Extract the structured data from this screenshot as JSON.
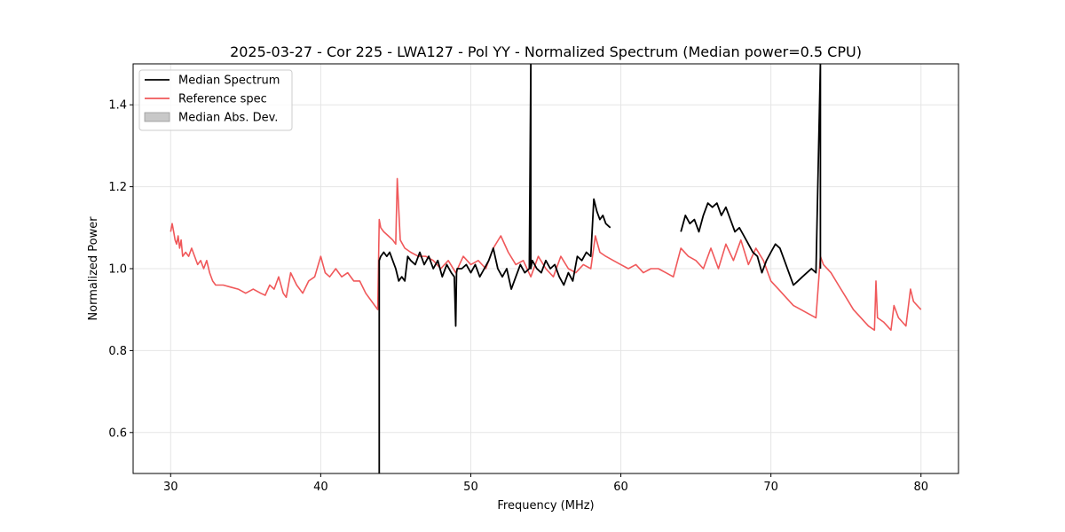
{
  "chart_data": {
    "type": "line",
    "title": "2025-03-27 - Cor 225 - LWA127 - Pol YY - Normalized Spectrum (Median power=0.5 CPU)",
    "xlabel": "Frequency (MHz)",
    "ylabel": "Normalized Power",
    "xlim": [
      27.5,
      82.5
    ],
    "ylim": [
      0.5,
      1.5
    ],
    "xticks": [
      30,
      40,
      50,
      60,
      70,
      80
    ],
    "xtick_labels": [
      "30",
      "40",
      "50",
      "60",
      "70",
      "80"
    ],
    "yticks": [
      0.6,
      0.8,
      1.0,
      1.2,
      1.4
    ],
    "ytick_labels": [
      "0.6",
      "0.8",
      "1.0",
      "1.2",
      "1.4"
    ],
    "grid": true,
    "legend_position": "top-left",
    "legend": [
      {
        "label": "Median Spectrum",
        "kind": "line",
        "color": "#000000"
      },
      {
        "label": "Reference spec",
        "kind": "line",
        "color": "#f0585a"
      },
      {
        "label": "Median Abs. Dev.",
        "kind": "patch",
        "color": "#c8c8c8"
      }
    ],
    "series": [
      {
        "name": "Reference spec",
        "color": "#f0585a",
        "x": [
          30.0,
          30.1,
          30.2,
          30.3,
          30.4,
          30.5,
          30.6,
          30.7,
          30.8,
          31.0,
          31.2,
          31.4,
          31.6,
          31.8,
          32.0,
          32.2,
          32.4,
          32.6,
          32.8,
          33.0,
          33.5,
          34.0,
          34.5,
          35.0,
          35.5,
          36.0,
          36.3,
          36.6,
          36.9,
          37.2,
          37.5,
          37.7,
          38.0,
          38.4,
          38.8,
          39.2,
          39.6,
          40.0,
          40.3,
          40.6,
          41.0,
          41.4,
          41.8,
          42.2,
          42.6,
          43.0,
          43.4,
          43.8,
          43.9,
          44.0,
          44.2,
          44.5,
          44.8,
          45.0,
          45.1,
          45.3,
          45.6,
          46.0,
          46.5,
          47.0,
          47.5,
          48.0,
          48.5,
          49.0,
          49.5,
          50.0,
          50.5,
          51.0,
          51.5,
          52.0,
          52.5,
          53.0,
          53.5,
          54.0,
          54.5,
          55.0,
          55.5,
          56.0,
          56.5,
          57.0,
          57.5,
          58.0,
          58.3,
          58.6,
          59.0,
          59.5,
          60.0,
          60.5,
          61.0,
          61.5,
          62.0,
          62.5,
          63.0,
          63.5,
          64.0,
          64.5,
          65.0,
          65.5,
          66.0,
          66.5,
          67.0,
          67.5,
          68.0,
          68.5,
          69.0,
          69.5,
          70.0,
          70.5,
          71.0,
          71.5,
          72.0,
          72.5,
          73.0,
          73.3,
          73.5,
          74.0,
          74.5,
          75.0,
          75.5,
          76.0,
          76.5,
          76.9,
          77.0,
          77.1,
          77.5,
          78.0,
          78.2,
          78.5,
          79.0,
          79.3,
          79.5,
          80.0
        ],
        "values": [
          1.09,
          1.11,
          1.09,
          1.07,
          1.06,
          1.08,
          1.05,
          1.07,
          1.03,
          1.04,
          1.03,
          1.05,
          1.03,
          1.01,
          1.02,
          1.0,
          1.02,
          0.99,
          0.97,
          0.96,
          0.96,
          0.955,
          0.95,
          0.94,
          0.95,
          0.94,
          0.935,
          0.96,
          0.95,
          0.98,
          0.94,
          0.93,
          0.99,
          0.96,
          0.94,
          0.97,
          0.98,
          1.03,
          0.99,
          0.98,
          1.0,
          0.98,
          0.99,
          0.97,
          0.97,
          0.94,
          0.92,
          0.9,
          1.12,
          1.1,
          1.09,
          1.08,
          1.07,
          1.06,
          1.22,
          1.07,
          1.05,
          1.04,
          1.03,
          1.03,
          1.02,
          1.0,
          1.02,
          0.99,
          1.03,
          1.01,
          1.02,
          1.0,
          1.05,
          1.08,
          1.04,
          1.01,
          1.02,
          0.98,
          1.03,
          1.0,
          0.98,
          1.03,
          1.0,
          0.99,
          1.01,
          1.0,
          1.08,
          1.04,
          1.03,
          1.02,
          1.01,
          1.0,
          1.01,
          0.99,
          1.0,
          1.0,
          0.99,
          0.98,
          1.05,
          1.03,
          1.02,
          1.0,
          1.05,
          1.0,
          1.06,
          1.02,
          1.07,
          1.01,
          1.05,
          1.02,
          0.97,
          0.95,
          0.93,
          0.91,
          0.9,
          0.89,
          0.88,
          1.03,
          1.01,
          0.99,
          0.96,
          0.93,
          0.9,
          0.88,
          0.86,
          0.85,
          0.97,
          0.88,
          0.87,
          0.85,
          0.91,
          0.88,
          0.86,
          0.95,
          0.92,
          0.9
        ]
      },
      {
        "name": "Median Spectrum",
        "color": "#000000",
        "x": [
          43.9,
          43.9,
          44.0,
          44.2,
          44.4,
          44.6,
          44.8,
          45.0,
          45.2,
          45.4,
          45.6,
          45.8,
          46.0,
          46.3,
          46.6,
          46.9,
          47.2,
          47.5,
          47.8,
          48.1,
          48.4,
          48.7,
          48.9,
          49.0,
          49.05,
          49.1,
          49.4,
          49.7,
          50.0,
          50.3,
          50.6,
          50.9,
          51.2,
          51.5,
          51.8,
          52.1,
          52.4,
          52.7,
          53.0,
          53.3,
          53.6,
          53.9,
          54.0,
          54.0,
          54.05,
          54.1,
          54.4,
          54.7,
          55.0,
          55.3,
          55.6,
          55.9,
          56.2,
          56.5,
          56.8,
          57.1,
          57.4,
          57.7,
          58.0,
          58.2,
          58.4,
          58.6,
          58.8,
          59.0,
          59.3,
          null,
          64.0,
          64.3,
          64.6,
          64.9,
          65.2,
          65.5,
          65.8,
          66.1,
          66.4,
          66.7,
          67.0,
          67.3,
          67.6,
          67.9,
          68.2,
          68.5,
          68.8,
          69.1,
          69.4,
          69.7,
          70.0,
          70.3,
          70.6,
          70.9,
          71.2,
          71.5,
          71.8,
          72.1,
          72.4,
          72.7,
          73.0,
          73.3,
          73.3,
          73.3
        ],
        "values": [
          0.5,
          1.02,
          1.03,
          1.04,
          1.03,
          1.04,
          1.02,
          1.0,
          0.97,
          0.98,
          0.97,
          1.03,
          1.02,
          1.01,
          1.04,
          1.01,
          1.03,
          1.0,
          1.02,
          0.98,
          1.01,
          0.99,
          0.98,
          0.86,
          0.99,
          1.0,
          1.0,
          1.01,
          0.99,
          1.01,
          0.98,
          1.0,
          1.02,
          1.05,
          1.0,
          0.98,
          1.0,
          0.95,
          0.98,
          1.01,
          0.99,
          1.0,
          1.5,
          1.0,
          1.01,
          1.02,
          1.0,
          0.99,
          1.02,
          1.0,
          1.01,
          0.98,
          0.96,
          0.99,
          0.97,
          1.03,
          1.02,
          1.04,
          1.03,
          1.17,
          1.14,
          1.12,
          1.13,
          1.11,
          1.1,
          null,
          1.09,
          1.13,
          1.11,
          1.12,
          1.09,
          1.13,
          1.16,
          1.15,
          1.16,
          1.13,
          1.15,
          1.12,
          1.09,
          1.1,
          1.08,
          1.06,
          1.04,
          1.03,
          0.99,
          1.02,
          1.04,
          1.06,
          1.05,
          1.02,
          0.99,
          0.96,
          0.97,
          0.98,
          0.99,
          1.0,
          0.99,
          1.5,
          1.0,
          1.0
        ]
      }
    ]
  }
}
